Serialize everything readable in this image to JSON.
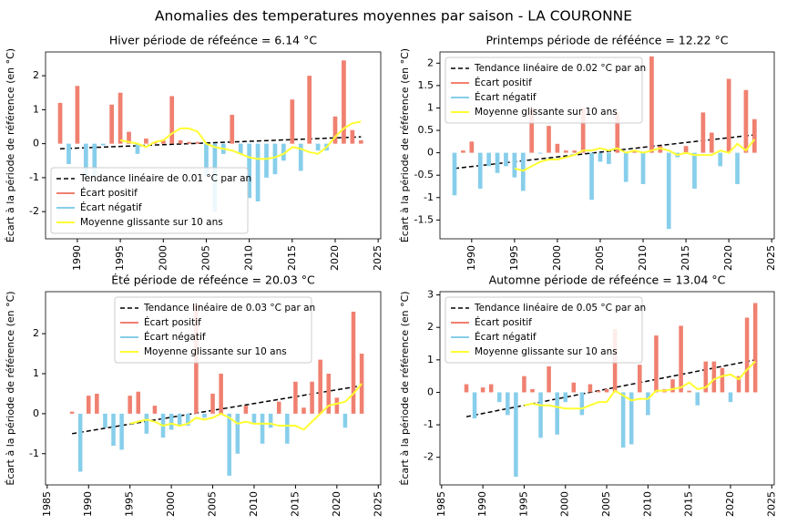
{
  "title": "Anomalies des temperatures moyennes par saison - LA COURONNE",
  "chart_data": [
    {
      "type": "bar",
      "title": "Hiver période de réfeénce = 6.14 °C",
      "y_label": "Écart à la période de référence (en °C)",
      "x": [
        1988,
        1989,
        1990,
        1991,
        1992,
        1993,
        1994,
        1995,
        1996,
        1997,
        1998,
        1999,
        2000,
        2001,
        2002,
        2003,
        2004,
        2005,
        2006,
        2007,
        2008,
        2009,
        2010,
        2011,
        2012,
        2013,
        2014,
        2015,
        2016,
        2017,
        2018,
        2019,
        2020,
        2021,
        2022,
        2023
      ],
      "xlim": [
        1986.3,
        2025.3
      ],
      "xticks": [
        1990,
        1995,
        2000,
        2005,
        2010,
        2015,
        2020,
        2025
      ],
      "ylim": [
        -2.8,
        2.7
      ],
      "yticks": [
        -2,
        -1,
        0,
        1,
        2
      ],
      "legend": "lower left",
      "series": [
        {
          "name": "Tendance linéaire de 0.01 °C par an",
          "type": "line",
          "style": "dashed",
          "color": "#000000",
          "x": [
            1988,
            2023
          ],
          "values": [
            -0.15,
            0.2
          ]
        },
        {
          "name": "Écart positif",
          "type": "bar",
          "color": "#f08070",
          "values": [
            1.2,
            null,
            1.7,
            null,
            null,
            null,
            1.15,
            1.5,
            0.35,
            null,
            0.15,
            0.05,
            0.1,
            1.4,
            0.1,
            0.05,
            0.05,
            null,
            null,
            null,
            0.85,
            null,
            null,
            null,
            null,
            null,
            null,
            1.3,
            null,
            2.0,
            null,
            null,
            0.8,
            2.45,
            0.4,
            0.1
          ]
        },
        {
          "name": "Écart négatif",
          "type": "bar",
          "color": "#87ceeb",
          "values": [
            null,
            -0.6,
            null,
            -1.0,
            -1.0,
            -0.05,
            null,
            null,
            null,
            -0.3,
            null,
            null,
            null,
            null,
            null,
            null,
            null,
            -0.95,
            -2.0,
            -0.3,
            null,
            -0.3,
            -1.6,
            -1.7,
            -1.0,
            -0.9,
            -0.5,
            null,
            -0.8,
            null,
            -0.2,
            -0.2,
            null,
            null,
            null,
            null
          ]
        },
        {
          "name": "Moyenne glissante sur 10 ans",
          "type": "line",
          "style": "solid",
          "color": "#ffff33",
          "values": [
            null,
            null,
            null,
            null,
            null,
            null,
            null,
            0.1,
            0.05,
            0.0,
            -0.1,
            0.05,
            0.1,
            0.3,
            0.45,
            0.45,
            0.35,
            0.0,
            -0.1,
            -0.15,
            -0.2,
            -0.3,
            -0.4,
            -0.45,
            -0.45,
            -0.4,
            -0.3,
            -0.1,
            -0.15,
            -0.25,
            -0.3,
            -0.1,
            0.2,
            0.45,
            0.6,
            0.65
          ]
        }
      ]
    },
    {
      "type": "bar",
      "title": "Printemps période de réféénce = 12.22 °C",
      "y_label": "Écart à la période de référence (en °C)",
      "x": [
        1988,
        1989,
        1990,
        1991,
        1992,
        1993,
        1994,
        1995,
        1996,
        1997,
        1998,
        1999,
        2000,
        2001,
        2002,
        2003,
        2004,
        2005,
        2006,
        2007,
        2008,
        2009,
        2010,
        2011,
        2012,
        2013,
        2014,
        2015,
        2016,
        2017,
        2018,
        2019,
        2020,
        2021,
        2022,
        2023
      ],
      "xlim": [
        1986.3,
        2025.3
      ],
      "xticks": [
        1990,
        1995,
        2000,
        2005,
        2010,
        2015,
        2020,
        2025
      ],
      "ylim": [
        -1.92,
        2.25
      ],
      "yticks": [
        -1.5,
        -1.0,
        -0.5,
        0.0,
        0.5,
        1.0,
        1.5,
        2.0
      ],
      "legend": "upper left",
      "series": [
        {
          "name": "Tendance linéaire de 0.02 °C par an",
          "type": "line",
          "style": "dashed",
          "color": "#000000",
          "x": [
            1988,
            2023
          ],
          "values": [
            -0.35,
            0.4
          ]
        },
        {
          "name": "Écart positif",
          "type": "bar",
          "color": "#f08070",
          "values": [
            null,
            0.05,
            0.25,
            null,
            null,
            null,
            null,
            null,
            null,
            1.0,
            null,
            0.6,
            0.2,
            0.05,
            0.05,
            1.0,
            null,
            null,
            null,
            0.9,
            null,
            0.05,
            null,
            2.15,
            0.15,
            null,
            null,
            0.15,
            null,
            0.9,
            0.45,
            null,
            1.65,
            null,
            1.4,
            0.75
          ]
        },
        {
          "name": "Écart négatif",
          "type": "bar",
          "color": "#87ceeb",
          "values": [
            -0.95,
            null,
            null,
            -0.8,
            -0.3,
            -0.45,
            -0.3,
            -0.55,
            -0.85,
            null,
            -0.02,
            null,
            null,
            null,
            null,
            null,
            -1.05,
            -0.2,
            -0.25,
            null,
            -0.65,
            null,
            -0.7,
            null,
            null,
            -1.7,
            -0.1,
            null,
            -0.8,
            null,
            null,
            -0.3,
            null,
            -0.7,
            null,
            null
          ]
        },
        {
          "name": "Moyenne glissante sur 10 ans",
          "type": "line",
          "style": "solid",
          "color": "#ffff33",
          "values": [
            null,
            null,
            null,
            null,
            null,
            null,
            null,
            -0.35,
            -0.4,
            -0.3,
            -0.2,
            -0.15,
            -0.15,
            -0.1,
            -0.05,
            0.05,
            0.05,
            0.1,
            0.05,
            0.1,
            0.0,
            0.05,
            0.0,
            0.05,
            0.1,
            0.05,
            -0.05,
            0.0,
            -0.05,
            -0.05,
            -0.05,
            0.05,
            0.0,
            0.2,
            0.05,
            0.3
          ]
        }
      ]
    },
    {
      "type": "bar",
      "title": "Été période de réfeénce = 20.03 °C",
      "y_label": "Écart à la période de référence (en °C)",
      "x": [
        1988,
        1989,
        1990,
        1991,
        1992,
        1993,
        1994,
        1995,
        1996,
        1997,
        1998,
        1999,
        2000,
        2001,
        2002,
        2003,
        2004,
        2005,
        2006,
        2007,
        2008,
        2009,
        2010,
        2011,
        2012,
        2013,
        2014,
        2015,
        2016,
        2017,
        2018,
        2019,
        2020,
        2021,
        2022,
        2023
      ],
      "xlim": [
        1984.8,
        2025.3
      ],
      "xticks": [
        1985,
        1990,
        1995,
        2000,
        2005,
        2010,
        2015,
        2020,
        2025
      ],
      "ylim": [
        -1.78,
        3.05
      ],
      "yticks": [
        -1,
        0,
        1,
        2
      ],
      "legend": "upper center",
      "series": [
        {
          "name": "Tendance linéaire de 0.03 °C par an",
          "type": "line",
          "style": "dashed",
          "color": "#000000",
          "x": [
            1988,
            2023
          ],
          "values": [
            -0.5,
            0.7
          ]
        },
        {
          "name": "Écart positif",
          "type": "bar",
          "color": "#f08070",
          "values": [
            0.05,
            null,
            0.45,
            0.5,
            null,
            null,
            null,
            0.45,
            0.55,
            null,
            0.2,
            null,
            null,
            null,
            null,
            2.75,
            null,
            0.5,
            1.0,
            null,
            null,
            0.2,
            null,
            null,
            null,
            0.3,
            null,
            0.8,
            0.15,
            0.8,
            1.35,
            1.0,
            0.4,
            null,
            2.55,
            1.5
          ]
        },
        {
          "name": "Écart négatif",
          "type": "bar",
          "color": "#87ceeb",
          "values": [
            null,
            -1.45,
            null,
            null,
            -0.35,
            -0.8,
            -0.9,
            null,
            null,
            -0.5,
            null,
            -0.6,
            -0.4,
            -0.3,
            -0.3,
            null,
            -0.1,
            null,
            null,
            -1.55,
            -1.0,
            null,
            -0.25,
            -0.75,
            -0.35,
            null,
            -0.75,
            null,
            null,
            null,
            null,
            null,
            null,
            -0.35,
            null,
            null
          ]
        },
        {
          "name": "Moyenne glissante sur 10 ans",
          "type": "line",
          "style": "solid",
          "color": "#ffff33",
          "values": [
            null,
            null,
            null,
            null,
            null,
            null,
            null,
            -0.25,
            -0.2,
            -0.15,
            -0.2,
            -0.3,
            -0.25,
            -0.3,
            -0.25,
            -0.1,
            -0.15,
            -0.1,
            0.0,
            -0.1,
            -0.25,
            -0.2,
            -0.25,
            -0.25,
            -0.25,
            -0.3,
            -0.3,
            -0.3,
            -0.4,
            -0.2,
            0.0,
            0.2,
            0.25,
            0.3,
            0.5,
            0.75
          ]
        }
      ]
    },
    {
      "type": "bar",
      "title": "Automne période de réfeénce = 13.04 °C",
      "y_label": "Écart à la période de référence (en °C)",
      "x": [
        1988,
        1989,
        1990,
        1991,
        1992,
        1993,
        1994,
        1995,
        1996,
        1997,
        1998,
        1999,
        2000,
        2001,
        2002,
        2003,
        2004,
        2005,
        2006,
        2007,
        2008,
        2009,
        2010,
        2011,
        2012,
        2013,
        2014,
        2015,
        2016,
        2017,
        2018,
        2019,
        2020,
        2021,
        2022,
        2023
      ],
      "xlim": [
        1984.8,
        2025.3
      ],
      "xticks": [
        1985,
        1990,
        1995,
        2000,
        2005,
        2010,
        2015,
        2020,
        2025
      ],
      "ylim": [
        -2.85,
        3.1
      ],
      "yticks": [
        -2,
        -1,
        0,
        1,
        2,
        3
      ],
      "legend": "upper left",
      "series": [
        {
          "name": "Tendance linéaire de 0.05 °C par an",
          "type": "line",
          "style": "dashed",
          "color": "#000000",
          "x": [
            1988,
            2023
          ],
          "values": [
            -0.75,
            1.0
          ]
        },
        {
          "name": "Écart positif",
          "type": "bar",
          "color": "#f08070",
          "values": [
            0.25,
            null,
            0.15,
            0.25,
            null,
            null,
            null,
            0.5,
            0.1,
            null,
            0.8,
            null,
            null,
            0.3,
            null,
            0.25,
            0.05,
            0.1,
            1.95,
            null,
            null,
            0.85,
            null,
            1.75,
            0.1,
            0.4,
            2.05,
            0.05,
            null,
            0.95,
            0.95,
            0.75,
            null,
            0.5,
            2.3,
            2.75
          ]
        },
        {
          "name": "Écart négatif",
          "type": "bar",
          "color": "#87ceeb",
          "values": [
            null,
            -0.8,
            null,
            null,
            -0.3,
            -0.7,
            -2.6,
            null,
            null,
            -1.4,
            null,
            -1.3,
            -0.3,
            null,
            -0.7,
            null,
            null,
            null,
            null,
            -1.7,
            -1.6,
            null,
            -0.7,
            null,
            null,
            null,
            null,
            null,
            -0.4,
            null,
            null,
            null,
            -0.3,
            null,
            null,
            null
          ]
        },
        {
          "name": "Moyenne glissante sur 10 ans",
          "type": "line",
          "style": "solid",
          "color": "#ffff33",
          "values": [
            null,
            null,
            null,
            null,
            null,
            null,
            null,
            -0.4,
            -0.35,
            -0.4,
            -0.4,
            -0.45,
            -0.5,
            -0.5,
            -0.5,
            -0.4,
            -0.3,
            -0.3,
            0.05,
            -0.1,
            -0.25,
            -0.2,
            -0.2,
            0.05,
            0.05,
            0.1,
            0.15,
            0.3,
            0.1,
            0.15,
            0.4,
            0.5,
            0.55,
            0.4,
            0.7,
            0.95
          ]
        }
      ]
    }
  ]
}
